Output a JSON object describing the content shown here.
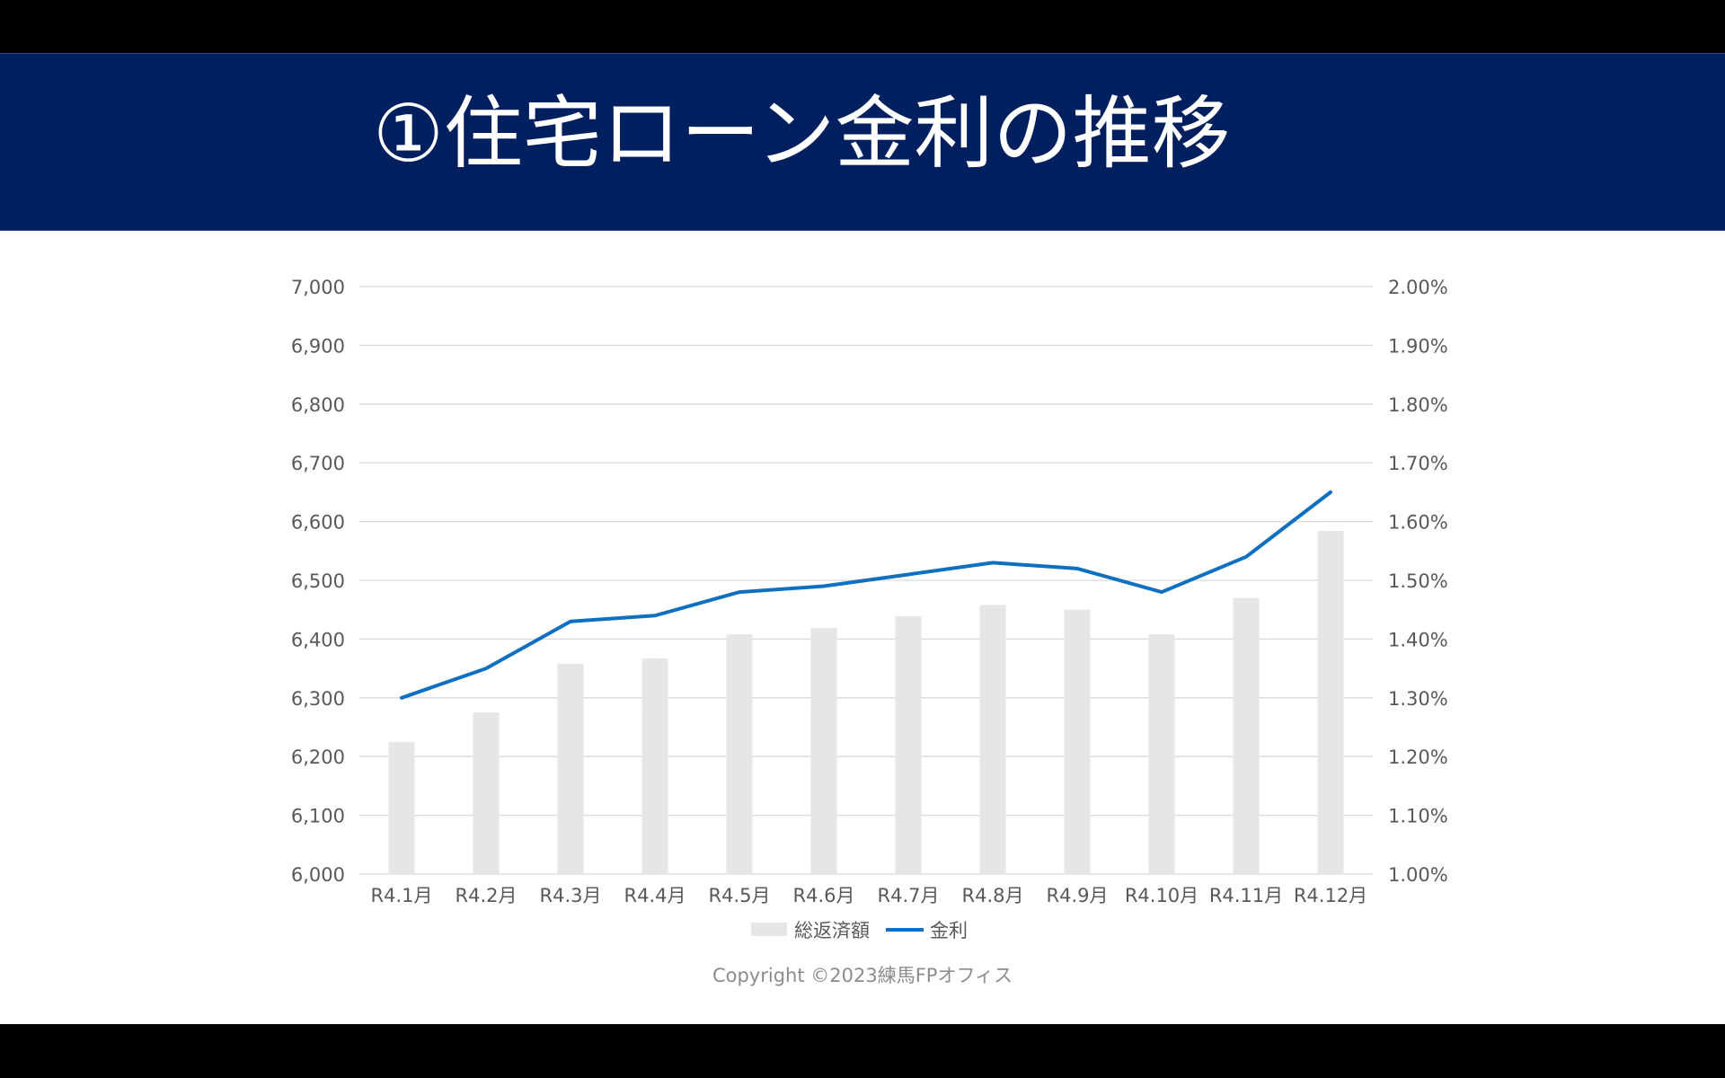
{
  "slide": {
    "title": "①住宅ローン金利の推移",
    "copyright": "Copyright ©2023練馬FPオフィス"
  },
  "colors": {
    "header_background": "#001f5e",
    "bar": "#e6e6e6",
    "line": "#0f6fc1",
    "grid": "#d9d9d9",
    "axis_text": "#595959"
  },
  "chart_data": {
    "type": "bar",
    "categories": [
      "R4.1月",
      "R4.2月",
      "R4.3月",
      "R4.4月",
      "R4.5月",
      "R4.6月",
      "R4.7月",
      "R4.8月",
      "R4.9月",
      "R4.10月",
      "R4.11月",
      "R4.12月"
    ],
    "series": [
      {
        "name": "総返済額",
        "type": "bar",
        "axis": "left",
        "values": [
          6225,
          6275,
          6358,
          6367,
          6408,
          6419,
          6439,
          6458,
          6450,
          6408,
          6470,
          6584
        ]
      },
      {
        "name": "金利",
        "type": "line",
        "axis": "right",
        "values": [
          1.3,
          1.35,
          1.43,
          1.44,
          1.48,
          1.49,
          1.51,
          1.53,
          1.52,
          1.48,
          1.54,
          1.65
        ]
      }
    ],
    "y_left": {
      "lim": [
        6000,
        7000
      ],
      "ticks": [
        "6,000",
        "6,100",
        "6,200",
        "6,300",
        "6,400",
        "6,500",
        "6,600",
        "6,700",
        "6,800",
        "6,900",
        "7,000"
      ]
    },
    "y_right": {
      "lim": [
        1.0,
        2.0
      ],
      "ticks": [
        "1.00%",
        "1.10%",
        "1.20%",
        "1.30%",
        "1.40%",
        "1.50%",
        "1.60%",
        "1.70%",
        "1.80%",
        "1.90%",
        "2.00%"
      ]
    },
    "grid": true,
    "legend": "bottom"
  }
}
